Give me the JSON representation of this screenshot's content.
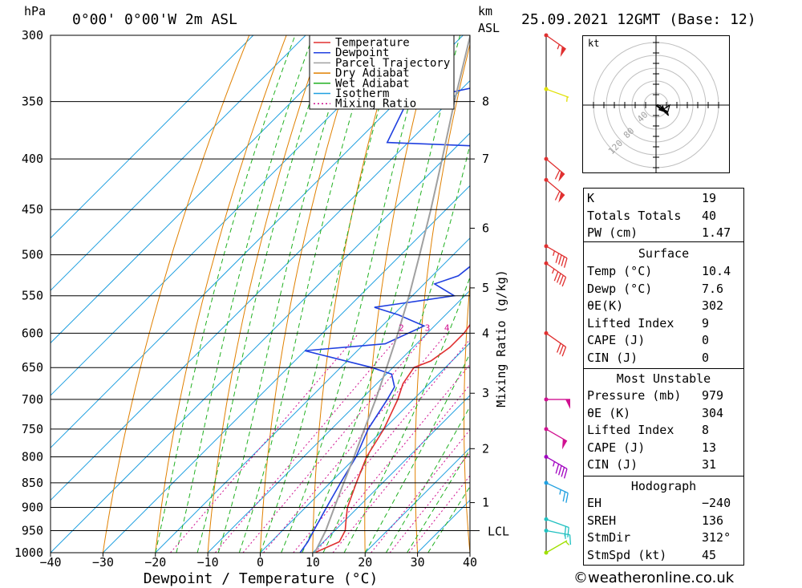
{
  "header": {
    "hpa_unit": "hPa",
    "location": "0°00'  0°00'W  2m  ASL",
    "km_unit": "km",
    "asl_unit": "ASL",
    "datetime": "25.09.2021  12GMT  (Base: 12)"
  },
  "chart_data": {
    "type": "line",
    "title": "0°00'  0°00'W  2m  ASL",
    "xlabel": "Dewpoint / Temperature (°C)",
    "ylabel": "hPa",
    "xlim": [
      -40,
      40
    ],
    "ylim": [
      1000,
      300
    ],
    "y_scale": "log",
    "skew": "skew-T (isotherms slanted 45°)",
    "x_ticks": [
      -40,
      -30,
      -20,
      -10,
      0,
      10,
      20,
      30,
      40
    ],
    "x_tick_labels": [
      "−40",
      "−30",
      "−20",
      "−10",
      "0",
      "10",
      "20",
      "30",
      "40"
    ],
    "pressure_ticks": [
      300,
      350,
      400,
      450,
      500,
      550,
      600,
      650,
      700,
      750,
      800,
      850,
      900,
      950,
      1000
    ],
    "km_ticks": [
      {
        "label": "8",
        "p": 350
      },
      {
        "label": "7",
        "p": 400
      },
      {
        "label": "6",
        "p": 470
      },
      {
        "label": "5",
        "p": 540
      },
      {
        "label": "4",
        "p": 600
      },
      {
        "label": "3",
        "p": 690
      },
      {
        "label": "2",
        "p": 785
      },
      {
        "label": "1",
        "p": 890
      }
    ],
    "lcl": {
      "label": "LCL",
      "p": 950
    },
    "mixing_ratio_label": "Mixing Ratio (g/kg)",
    "mixing_ratio_values": [
      "2",
      "3",
      "4",
      "6",
      "8",
      "10",
      "16",
      "20",
      "25"
    ],
    "legend_position": "top-right",
    "legend": [
      {
        "name": "Temperature",
        "color": "#e03030",
        "dash": ""
      },
      {
        "name": "Dewpoint",
        "color": "#2040e0",
        "dash": ""
      },
      {
        "name": "Parcel Trajectory",
        "color": "#a0a0a0",
        "dash": ""
      },
      {
        "name": "Dry Adiabat",
        "color": "#e08000",
        "dash": ""
      },
      {
        "name": "Wet Adiabat",
        "color": "#20b020",
        "dash": ""
      },
      {
        "name": "Isotherm",
        "color": "#20a0e0",
        "dash": ""
      },
      {
        "name": "Mixing Ratio",
        "color": "#d01090",
        "dash": "2,3"
      }
    ],
    "series": [
      {
        "name": "Temperature",
        "color": "#e03030",
        "points": [
          [
            1000,
            10.4
          ],
          [
            975,
            13
          ],
          [
            950,
            12
          ],
          [
            925,
            10
          ],
          [
            900,
            8
          ],
          [
            850,
            5
          ],
          [
            800,
            2
          ],
          [
            750,
            0
          ],
          [
            700,
            -3
          ],
          [
            675,
            -5
          ],
          [
            650,
            -6
          ],
          [
            640,
            -4
          ],
          [
            620,
            -3
          ],
          [
            600,
            -3
          ],
          [
            575,
            -4
          ],
          [
            550,
            -5
          ],
          [
            530,
            -2
          ],
          [
            500,
            -4
          ],
          [
            450,
            -9
          ],
          [
            420,
            -13
          ],
          [
            400,
            -17
          ],
          [
            385,
            -21
          ],
          [
            380,
            -20
          ],
          [
            350,
            -26
          ],
          [
            330,
            -31
          ],
          [
            310,
            -32
          ],
          [
            300,
            -33
          ]
        ]
      },
      {
        "name": "Dewpoint",
        "color": "#2040e0",
        "points": [
          [
            1000,
            7.6
          ],
          [
            975,
            7
          ],
          [
            950,
            6
          ],
          [
            900,
            4
          ],
          [
            850,
            2
          ],
          [
            800,
            0
          ],
          [
            750,
            -3
          ],
          [
            700,
            -5
          ],
          [
            680,
            -6
          ],
          [
            660,
            -9
          ],
          [
            650,
            -14
          ],
          [
            625,
            -30
          ],
          [
            615,
            -16
          ],
          [
            590,
            -12
          ],
          [
            575,
            -19
          ],
          [
            565,
            -25
          ],
          [
            550,
            -12
          ],
          [
            535,
            -18
          ],
          [
            525,
            -15
          ],
          [
            500,
            -14
          ],
          [
            450,
            -18
          ],
          [
            420,
            -21
          ],
          [
            410,
            -24
          ],
          [
            400,
            -27
          ],
          [
            390,
            -26
          ],
          [
            385,
            -54
          ],
          [
            350,
            -58
          ],
          [
            330,
            -40
          ],
          [
            300,
            -52
          ]
        ]
      },
      {
        "name": "Parcel Trajectory",
        "color": "#a0a0a0",
        "points": [
          [
            1000,
            10.4
          ],
          [
            950,
            8.3
          ],
          [
            900,
            5.5
          ],
          [
            850,
            2.6
          ],
          [
            800,
            -0.4
          ],
          [
            750,
            -3.7
          ],
          [
            700,
            -7.2
          ],
          [
            650,
            -11.2
          ],
          [
            600,
            -15.6
          ],
          [
            550,
            -20.6
          ],
          [
            500,
            -26.4
          ],
          [
            450,
            -32.9
          ],
          [
            400,
            -40.4
          ],
          [
            350,
            -49
          ],
          [
            300,
            -58.6
          ]
        ]
      }
    ],
    "isotherms": [
      -100,
      -90,
      -80,
      -70,
      -60,
      -50,
      -40,
      -30,
      -20,
      -10,
      0,
      10,
      20,
      30,
      40
    ],
    "dry_adiabats_theta_c": [
      -30,
      -20,
      -10,
      0,
      10,
      20,
      30,
      40,
      50,
      60,
      70,
      80,
      90,
      100,
      110,
      120,
      130,
      140,
      150,
      160
    ],
    "wet_adiabats_c": [
      -20,
      -16,
      -12,
      -8,
      -4,
      0,
      4,
      8,
      12,
      16,
      20,
      24,
      28,
      32
    ],
    "mixing_ratios": [
      1,
      2,
      3,
      4,
      6,
      8,
      10,
      16,
      20,
      25
    ],
    "wind_barbs": [
      {
        "p": 1000,
        "dir": 240,
        "spd": 5,
        "color": "#a0e000"
      },
      {
        "p": 950,
        "dir": 280,
        "spd": 15,
        "color": "#20c0c0"
      },
      {
        "p": 925,
        "dir": 290,
        "spd": 20,
        "color": "#20c0c0"
      },
      {
        "p": 850,
        "dir": 295,
        "spd": 25,
        "color": "#20a0e0"
      },
      {
        "p": 800,
        "dir": 300,
        "spd": 45,
        "color": "#a000c0"
      },
      {
        "p": 750,
        "dir": 300,
        "spd": 50,
        "color": "#d01090"
      },
      {
        "p": 700,
        "dir": 270,
        "spd": 50,
        "color": "#d01090"
      },
      {
        "p": 600,
        "dir": 305,
        "spd": 30,
        "color": "#e03030"
      },
      {
        "p": 510,
        "dir": 305,
        "spd": 45,
        "color": "#e03030"
      },
      {
        "p": 490,
        "dir": 300,
        "spd": 45,
        "color": "#e03030"
      },
      {
        "p": 420,
        "dir": 310,
        "spd": 60,
        "color": "#e03030"
      },
      {
        "p": 400,
        "dir": 310,
        "spd": 60,
        "color": "#e03030"
      },
      {
        "p": 340,
        "dir": 290,
        "spd": 5,
        "color": "#e0e000"
      },
      {
        "p": 300,
        "dir": 305,
        "spd": 55,
        "color": "#e03030"
      }
    ],
    "hodograph": {
      "unit": "kt",
      "ring_labels": [
        "40",
        "80",
        "120"
      ],
      "storm_dir_deg": 312,
      "storm_speed_kt": 45
    }
  },
  "indices": {
    "rows": [
      {
        "k": "K",
        "v": "19"
      },
      {
        "k": "Totals Totals",
        "v": "40"
      },
      {
        "k": "PW (cm)",
        "v": "1.47"
      }
    ]
  },
  "surface": {
    "title": "Surface",
    "rows": [
      {
        "k": "Temp (°C)",
        "v": "10.4"
      },
      {
        "k": "Dewp (°C)",
        "v": "7.6"
      },
      {
        "k": "θE(K)",
        "v": "302"
      },
      {
        "k": "Lifted Index",
        "v": "9"
      },
      {
        "k": "CAPE (J)",
        "v": "0"
      },
      {
        "k": "CIN (J)",
        "v": "0"
      }
    ]
  },
  "most_unstable": {
    "title": "Most Unstable",
    "rows": [
      {
        "k": "Pressure (mb)",
        "v": "979"
      },
      {
        "k": "θE (K)",
        "v": "304"
      },
      {
        "k": "Lifted Index",
        "v": "8"
      },
      {
        "k": "CAPE (J)",
        "v": "13"
      },
      {
        "k": "CIN (J)",
        "v": "31"
      }
    ]
  },
  "hodograph_table": {
    "title": "Hodograph",
    "rows": [
      {
        "k": "EH",
        "v": "−240"
      },
      {
        "k": "SREH",
        "v": "136"
      },
      {
        "k": "StmDir",
        "v": "312°"
      },
      {
        "k": "StmSpd (kt)",
        "v": "45"
      }
    ]
  },
  "credit": "©weatheronline.co.uk"
}
